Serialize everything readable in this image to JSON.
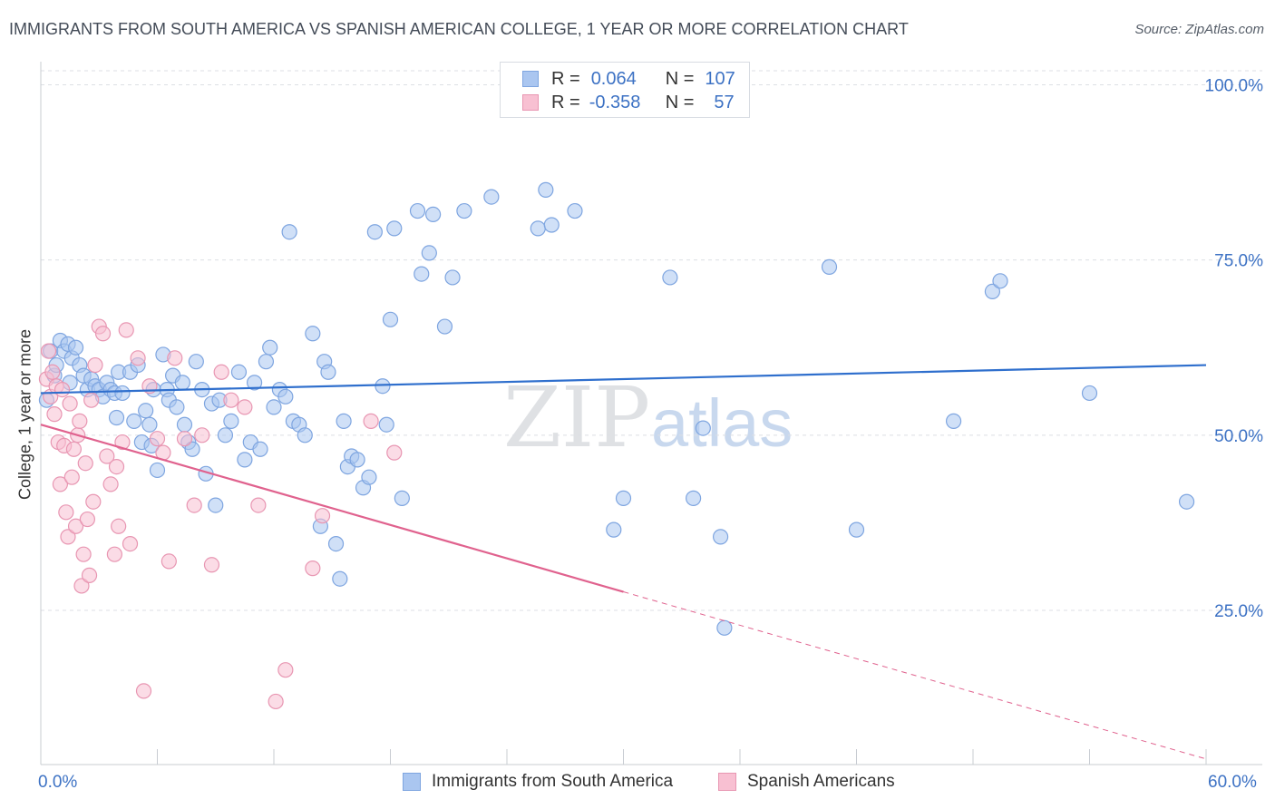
{
  "title": "IMMIGRANTS FROM SOUTH AMERICA VS SPANISH AMERICAN COLLEGE, 1 YEAR OR MORE CORRELATION CHART",
  "source": "Source: ZipAtlas.com",
  "watermark": {
    "zip": "ZIP",
    "atlas": "atlas"
  },
  "legend": {
    "r_label": "R =",
    "n_label": "N =",
    "rows": [
      {
        "r": "0.064",
        "n": "107",
        "color": "#aac6f0",
        "border": "#7ea5e0"
      },
      {
        "r": "-0.358",
        "n": "57",
        "color": "#f8c0d2",
        "border": "#e896b2"
      }
    ]
  },
  "chart_data": {
    "type": "scatter",
    "title": "IMMIGRANTS FROM SOUTH AMERICA VS SPANISH AMERICAN COLLEGE, 1 YEAR OR MORE CORRELATION CHART",
    "xlabel": "",
    "ylabel": "College, 1 year or more",
    "xlim": [
      0,
      60
    ],
    "ylim": [
      3,
      102
    ],
    "x_tick_labels": [
      "0.0%",
      "60.0%"
    ],
    "y_ticks": [
      25,
      50,
      75,
      100
    ],
    "y_tick_labels": [
      "25.0%",
      "50.0%",
      "75.0%",
      "100.0%"
    ],
    "grid": true,
    "legend_position": "top-center",
    "series": [
      {
        "name": "Immigrants from South America",
        "color": "#aac6f0",
        "stroke": "#7ea5e0",
        "line_color": "#2f6fcd",
        "trend": {
          "x": [
            0,
            60
          ],
          "y": [
            56.0,
            60.0
          ],
          "dash_from": null
        },
        "points": [
          [
            0.3,
            55.0
          ],
          [
            0.5,
            62.0
          ],
          [
            0.7,
            58.5
          ],
          [
            0.8,
            60.0
          ],
          [
            1.0,
            63.5
          ],
          [
            1.2,
            62.0
          ],
          [
            1.4,
            63.0
          ],
          [
            1.6,
            61.0
          ],
          [
            1.8,
            62.5
          ],
          [
            2.0,
            60.0
          ],
          [
            2.2,
            58.5
          ],
          [
            2.4,
            56.5
          ],
          [
            2.6,
            58.0
          ],
          [
            2.8,
            57.0
          ],
          [
            3.0,
            56.5
          ],
          [
            3.2,
            55.5
          ],
          [
            3.4,
            57.5
          ],
          [
            3.6,
            56.5
          ],
          [
            3.8,
            56.0
          ],
          [
            4.0,
            59.0
          ],
          [
            4.2,
            56.0
          ],
          [
            4.6,
            59.0
          ],
          [
            4.8,
            52.0
          ],
          [
            5.0,
            60.0
          ],
          [
            5.2,
            49.0
          ],
          [
            5.4,
            53.5
          ],
          [
            5.6,
            51.5
          ],
          [
            5.8,
            56.5
          ],
          [
            6.0,
            45.0
          ],
          [
            6.3,
            61.5
          ],
          [
            6.5,
            56.5
          ],
          [
            6.6,
            55.0
          ],
          [
            6.8,
            58.5
          ],
          [
            7.0,
            54.0
          ],
          [
            7.3,
            57.5
          ],
          [
            7.6,
            49.0
          ],
          [
            7.8,
            48.0
          ],
          [
            8.0,
            60.5
          ],
          [
            8.3,
            56.5
          ],
          [
            8.5,
            44.5
          ],
          [
            8.8,
            54.5
          ],
          [
            9.0,
            40.0
          ],
          [
            9.2,
            55.0
          ],
          [
            9.5,
            50.0
          ],
          [
            9.8,
            52.0
          ],
          [
            10.2,
            59.0
          ],
          [
            10.5,
            46.5
          ],
          [
            10.8,
            49.0
          ],
          [
            11.0,
            57.5
          ],
          [
            11.3,
            48.0
          ],
          [
            11.6,
            60.5
          ],
          [
            11.8,
            62.5
          ],
          [
            12.0,
            54.0
          ],
          [
            12.3,
            56.5
          ],
          [
            12.6,
            55.5
          ],
          [
            12.8,
            79.0
          ],
          [
            13.0,
            52.0
          ],
          [
            13.3,
            51.5
          ],
          [
            13.6,
            50.0
          ],
          [
            14.0,
            64.5
          ],
          [
            14.4,
            37.0
          ],
          [
            14.6,
            60.5
          ],
          [
            14.8,
            59.0
          ],
          [
            15.2,
            34.5
          ],
          [
            15.4,
            29.5
          ],
          [
            15.6,
            52.0
          ],
          [
            15.8,
            45.5
          ],
          [
            16.0,
            47.0
          ],
          [
            16.3,
            46.5
          ],
          [
            16.6,
            42.5
          ],
          [
            16.9,
            44.0
          ],
          [
            17.2,
            79.0
          ],
          [
            17.6,
            57.0
          ],
          [
            17.8,
            51.5
          ],
          [
            18.0,
            66.5
          ],
          [
            18.2,
            79.5
          ],
          [
            18.6,
            41.0
          ],
          [
            19.4,
            82.0
          ],
          [
            19.6,
            73.0
          ],
          [
            20.0,
            76.0
          ],
          [
            20.2,
            81.5
          ],
          [
            20.8,
            65.5
          ],
          [
            21.2,
            72.5
          ],
          [
            21.8,
            82.0
          ],
          [
            23.2,
            84.0
          ],
          [
            25.6,
            79.5
          ],
          [
            26.0,
            85.0
          ],
          [
            26.3,
            80.0
          ],
          [
            27.5,
            82.0
          ],
          [
            29.5,
            36.5
          ],
          [
            30.0,
            41.0
          ],
          [
            32.4,
            72.5
          ],
          [
            33.6,
            41.0
          ],
          [
            34.1,
            51.0
          ],
          [
            35.0,
            35.5
          ],
          [
            35.2,
            22.5
          ],
          [
            40.6,
            74.0
          ],
          [
            42.0,
            36.5
          ],
          [
            47.0,
            52.0
          ],
          [
            49.0,
            70.5
          ],
          [
            49.4,
            72.0
          ],
          [
            54.0,
            56.0
          ],
          [
            59.0,
            40.5
          ],
          [
            7.4,
            51.5
          ],
          [
            5.7,
            48.5
          ],
          [
            3.9,
            52.5
          ],
          [
            1.5,
            57.5
          ]
        ]
      },
      {
        "name": "Spanish Americans",
        "color": "#f8c0d2",
        "stroke": "#e896b2",
        "line_color": "#e0628e",
        "trend": {
          "x": [
            0,
            60
          ],
          "y": [
            51.5,
            3.8
          ],
          "dash_from": 30
        },
        "points": [
          [
            0.3,
            58.0
          ],
          [
            0.4,
            62.0
          ],
          [
            0.5,
            55.5
          ],
          [
            0.6,
            59.0
          ],
          [
            0.7,
            53.0
          ],
          [
            0.8,
            57.0
          ],
          [
            0.9,
            49.0
          ],
          [
            1.0,
            43.0
          ],
          [
            1.1,
            56.5
          ],
          [
            1.2,
            48.5
          ],
          [
            1.3,
            39.0
          ],
          [
            1.4,
            35.5
          ],
          [
            1.5,
            54.5
          ],
          [
            1.6,
            44.0
          ],
          [
            1.7,
            48.0
          ],
          [
            1.8,
            37.0
          ],
          [
            1.9,
            50.0
          ],
          [
            2.0,
            52.0
          ],
          [
            2.1,
            28.5
          ],
          [
            2.2,
            33.0
          ],
          [
            2.3,
            46.0
          ],
          [
            2.4,
            38.0
          ],
          [
            2.5,
            30.0
          ],
          [
            2.6,
            55.0
          ],
          [
            2.7,
            40.5
          ],
          [
            2.8,
            60.0
          ],
          [
            3.0,
            65.5
          ],
          [
            3.2,
            64.5
          ],
          [
            3.4,
            47.0
          ],
          [
            3.6,
            43.0
          ],
          [
            3.8,
            33.0
          ],
          [
            3.9,
            45.5
          ],
          [
            4.0,
            37.0
          ],
          [
            4.2,
            49.0
          ],
          [
            4.4,
            65.0
          ],
          [
            4.6,
            34.5
          ],
          [
            5.0,
            61.0
          ],
          [
            5.3,
            13.5
          ],
          [
            5.6,
            57.0
          ],
          [
            6.0,
            49.5
          ],
          [
            6.3,
            47.5
          ],
          [
            6.6,
            32.0
          ],
          [
            6.9,
            61.0
          ],
          [
            7.4,
            49.5
          ],
          [
            7.9,
            40.0
          ],
          [
            8.3,
            50.0
          ],
          [
            8.8,
            31.5
          ],
          [
            9.3,
            59.0
          ],
          [
            9.8,
            55.0
          ],
          [
            10.5,
            54.0
          ],
          [
            11.2,
            40.0
          ],
          [
            12.1,
            12.0
          ],
          [
            12.6,
            16.5
          ],
          [
            14.0,
            31.0
          ],
          [
            14.5,
            38.5
          ],
          [
            17.0,
            52.0
          ],
          [
            18.2,
            47.5
          ]
        ]
      }
    ]
  }
}
